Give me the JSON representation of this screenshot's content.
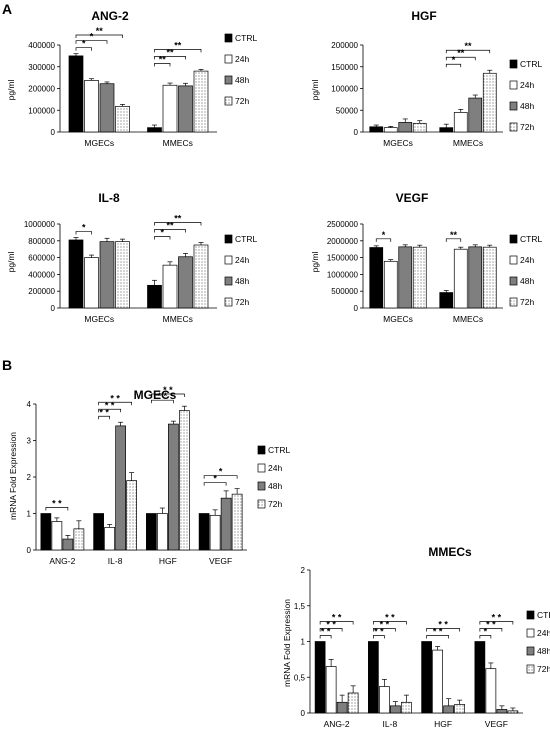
{
  "panel_labels": [
    "A",
    "B"
  ],
  "legend_labels": [
    "CTRL",
    "24h",
    "48h",
    "72h"
  ],
  "chart_data": [
    {
      "type": "bar",
      "title": "ANG-2",
      "ylabel": "pg/ml",
      "categories": [
        "MGECs",
        "MMECs"
      ],
      "ylim": [
        0,
        400000
      ],
      "yticks": [
        "0",
        "100000",
        "200000",
        "300000",
        "400000"
      ],
      "series": [
        {
          "name": "CTRL",
          "values": [
            350000,
            20000
          ],
          "errors": [
            10000,
            12000
          ]
        },
        {
          "name": "24h",
          "values": [
            237000,
            215000
          ],
          "errors": [
            8000,
            10000
          ]
        },
        {
          "name": "48h",
          "values": [
            222000,
            212000
          ],
          "errors": [
            8000,
            12000
          ]
        },
        {
          "name": "72h",
          "values": [
            118000,
            280000
          ],
          "errors": [
            9000,
            8000
          ]
        }
      ],
      "significance": [
        {
          "group": 0,
          "from": 0,
          "to": 1,
          "level": 0,
          "label": "*"
        },
        {
          "group": 0,
          "from": 0,
          "to": 2,
          "level": 1,
          "label": "*"
        },
        {
          "group": 0,
          "from": 0,
          "to": 3,
          "level": 2,
          "label": "**"
        },
        {
          "group": 1,
          "from": 0,
          "to": 1,
          "level": 0,
          "label": "**"
        },
        {
          "group": 1,
          "from": 0,
          "to": 2,
          "level": 1,
          "label": "**"
        },
        {
          "group": 1,
          "from": 0,
          "to": 3,
          "level": 2,
          "label": "**"
        }
      ]
    },
    {
      "type": "bar",
      "title": "HGF",
      "ylabel": "pg/ml",
      "categories": [
        "MGECs",
        "MMECs"
      ],
      "ylim": [
        0,
        200000
      ],
      "yticks": [
        "0",
        "50000",
        "100000",
        "150000",
        "200000"
      ],
      "series": [
        {
          "name": "CTRL",
          "values": [
            12000,
            10000
          ],
          "errors": [
            4000,
            8000
          ]
        },
        {
          "name": "24h",
          "values": [
            10000,
            45000
          ],
          "errors": [
            3000,
            7000
          ]
        },
        {
          "name": "48h",
          "values": [
            22000,
            78000
          ],
          "errors": [
            8000,
            7000
          ]
        },
        {
          "name": "72h",
          "values": [
            20000,
            135000
          ],
          "errors": [
            6000,
            7000
          ]
        }
      ],
      "significance": [
        {
          "group": 1,
          "from": 0,
          "to": 1,
          "level": 0,
          "label": "*"
        },
        {
          "group": 1,
          "from": 0,
          "to": 2,
          "level": 1,
          "label": "**"
        },
        {
          "group": 1,
          "from": 0,
          "to": 3,
          "level": 2,
          "label": "**"
        }
      ]
    },
    {
      "type": "bar",
      "title": "IL-8",
      "ylabel": "pg/ml",
      "categories": [
        "MGECs",
        "MMECs"
      ],
      "ylim": [
        0,
        1000000
      ],
      "yticks": [
        "0",
        "200000",
        "400000",
        "600000",
        "800000",
        "1000000"
      ],
      "series": [
        {
          "name": "CTRL",
          "values": [
            810000,
            270000
          ],
          "errors": [
            30000,
            60000
          ]
        },
        {
          "name": "24h",
          "values": [
            600000,
            510000
          ],
          "errors": [
            30000,
            40000
          ]
        },
        {
          "name": "48h",
          "values": [
            790000,
            610000
          ],
          "errors": [
            40000,
            40000
          ]
        },
        {
          "name": "72h",
          "values": [
            790000,
            750000
          ],
          "errors": [
            30000,
            30000
          ]
        }
      ],
      "significance": [
        {
          "group": 0,
          "from": 0,
          "to": 1,
          "level": 0,
          "label": "*"
        },
        {
          "group": 1,
          "from": 0,
          "to": 1,
          "level": 0,
          "label": "*"
        },
        {
          "group": 1,
          "from": 0,
          "to": 2,
          "level": 1,
          "label": "**"
        },
        {
          "group": 1,
          "from": 0,
          "to": 3,
          "level": 2,
          "label": "**"
        }
      ]
    },
    {
      "type": "bar",
      "title": "VEGF",
      "ylabel": "pg/ml",
      "categories": [
        "MGECs",
        "MMECs"
      ],
      "ylim": [
        0,
        2500000
      ],
      "yticks": [
        "0",
        "500000",
        "1000000",
        "1500000",
        "2000000",
        "2500000"
      ],
      "series": [
        {
          "name": "CTRL",
          "values": [
            1800000,
            460000
          ],
          "errors": [
            50000,
            60000
          ]
        },
        {
          "name": "24h",
          "values": [
            1390000,
            1750000
          ],
          "errors": [
            50000,
            60000
          ]
        },
        {
          "name": "48h",
          "values": [
            1820000,
            1820000
          ],
          "errors": [
            60000,
            60000
          ]
        },
        {
          "name": "72h",
          "values": [
            1810000,
            1810000
          ],
          "errors": [
            60000,
            60000
          ]
        }
      ],
      "significance": [
        {
          "group": 0,
          "from": 0,
          "to": 1,
          "level": 0,
          "label": "*"
        },
        {
          "group": 1,
          "from": 0,
          "to": 1,
          "level": 0,
          "label": "**"
        }
      ]
    },
    {
      "type": "bar",
      "title": "MGECs",
      "ylabel": "mRNA Fold Expression",
      "categories": [
        "ANG-2",
        "IL-8",
        "HGF",
        "VEGF"
      ],
      "ylim": [
        0,
        4
      ],
      "yticks": [
        "0",
        "1",
        "2",
        "3",
        "4"
      ],
      "series": [
        {
          "name": "CTRL",
          "values": [
            1.0,
            1.0,
            1.0,
            1.0
          ],
          "errors": [
            0,
            0,
            0,
            0
          ]
        },
        {
          "name": "24h",
          "values": [
            0.78,
            0.62,
            1.0,
            0.95
          ],
          "errors": [
            0.1,
            0.08,
            0.15,
            0.15
          ]
        },
        {
          "name": "48h",
          "values": [
            0.3,
            3.4,
            3.45,
            1.42
          ],
          "errors": [
            0.1,
            0.1,
            0.08,
            0.2
          ]
        },
        {
          "name": "72h",
          "values": [
            0.58,
            1.9,
            3.82,
            1.53
          ],
          "errors": [
            0.22,
            0.22,
            0.12,
            0.15
          ]
        }
      ],
      "significance": [
        {
          "group": 0,
          "from": 0,
          "to": 2,
          "level": 0,
          "label": "* *"
        },
        {
          "group": 1,
          "from": 0,
          "to": 1,
          "level": 0,
          "label": "* *"
        },
        {
          "group": 1,
          "from": 0,
          "to": 2,
          "level": 1,
          "label": "* *"
        },
        {
          "group": 1,
          "from": 0,
          "to": 3,
          "level": 2,
          "label": "* *"
        },
        {
          "group": 2,
          "from": 0,
          "to": 2,
          "level": 0,
          "label": "* *"
        },
        {
          "group": 2,
          "from": 0,
          "to": 3,
          "level": 1,
          "label": "* *"
        },
        {
          "group": 3,
          "from": 0,
          "to": 2,
          "level": 0,
          "label": "*"
        },
        {
          "group": 3,
          "from": 0,
          "to": 3,
          "level": 1,
          "label": "*"
        }
      ]
    },
    {
      "type": "bar",
      "title": "MMECs",
      "ylabel": "mRNA Fold Expression",
      "categories": [
        "ANG-2",
        "IL-8",
        "HGF",
        "VEGF"
      ],
      "ylim": [
        0,
        2
      ],
      "yticks": [
        "0",
        "0,5",
        "1",
        "1,5",
        "2"
      ],
      "series": [
        {
          "name": "CTRL",
          "values": [
            1.0,
            1.0,
            1.0,
            1.0
          ],
          "errors": [
            0,
            0,
            0,
            0
          ]
        },
        {
          "name": "24h",
          "values": [
            0.65,
            0.37,
            0.88,
            0.62
          ],
          "errors": [
            0.1,
            0.1,
            0.05,
            0.08
          ]
        },
        {
          "name": "48h",
          "values": [
            0.15,
            0.1,
            0.1,
            0.05
          ],
          "errors": [
            0.1,
            0.06,
            0.1,
            0.05
          ]
        },
        {
          "name": "72h",
          "values": [
            0.28,
            0.15,
            0.12,
            0.03
          ],
          "errors": [
            0.1,
            0.1,
            0.06,
            0.04
          ]
        }
      ],
      "significance": [
        {
          "group": 0,
          "from": 0,
          "to": 1,
          "level": 0,
          "label": "* *"
        },
        {
          "group": 0,
          "from": 0,
          "to": 2,
          "level": 1,
          "label": "* *"
        },
        {
          "group": 0,
          "from": 0,
          "to": 3,
          "level": 2,
          "label": "* *"
        },
        {
          "group": 1,
          "from": 0,
          "to": 1,
          "level": 0,
          "label": "* *"
        },
        {
          "group": 1,
          "from": 0,
          "to": 2,
          "level": 1,
          "label": "* *"
        },
        {
          "group": 1,
          "from": 0,
          "to": 3,
          "level": 2,
          "label": "* *"
        },
        {
          "group": 2,
          "from": 0,
          "to": 2,
          "level": 0,
          "label": "* *"
        },
        {
          "group": 2,
          "from": 0,
          "to": 3,
          "level": 1,
          "label": "* *"
        },
        {
          "group": 3,
          "from": 0,
          "to": 1,
          "level": 0,
          "label": "*"
        },
        {
          "group": 3,
          "from": 0,
          "to": 2,
          "level": 1,
          "label": "* *"
        },
        {
          "group": 3,
          "from": 0,
          "to": 3,
          "level": 2,
          "label": "* *"
        }
      ]
    }
  ]
}
